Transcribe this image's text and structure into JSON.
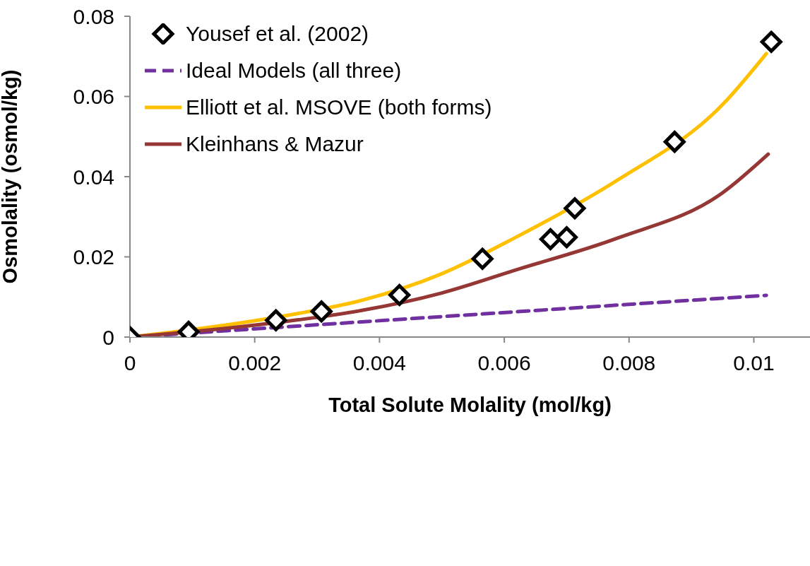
{
  "chart_data": {
    "type": "line",
    "xlabel": "Total Solute Molality (mol/kg)",
    "ylabel": "Osmolality (osmol/kg)",
    "xlim": [
      0,
      0.0109
    ],
    "xticks": [
      0,
      0.002,
      0.004,
      0.006,
      0.008,
      0.01
    ],
    "ylim": [
      0,
      0.08
    ],
    "yticks": [
      0,
      0.02,
      0.04,
      0.06,
      0.08
    ],
    "grid": false,
    "legend": "top left",
    "series": [
      {
        "name": "Yousef et al. (2002)",
        "type": "scatter",
        "marker": "diamond",
        "color": "#000000",
        "x": [
          0,
          0.00094,
          0.00234,
          0.00307,
          0.00432,
          0.00565,
          0.00674,
          0.007,
          0.00713,
          0.00873,
          0.01028
        ],
        "values": [
          0,
          0.0013,
          0.0042,
          0.0064,
          0.0105,
          0.0195,
          0.0244,
          0.0249,
          0.0321,
          0.0487,
          0.0736
        ]
      },
      {
        "name": "Ideal Models (all three)",
        "line_style": "dashed",
        "color": "#7030a0",
        "x": [
          0,
          0.0102
        ],
        "values": [
          0,
          0.0104
        ]
      },
      {
        "name": "Elliott et al. MSOVE (both forms)",
        "line_style": "solid",
        "color": "#ffc000",
        "x": [
          0,
          0.0015,
          0.0027,
          0.0037,
          0.005,
          0.0062,
          0.0078,
          0.0095,
          0.0102
        ],
        "values": [
          0,
          0.0029,
          0.0059,
          0.0091,
          0.0158,
          0.025,
          0.039,
          0.058,
          0.0707
        ]
      },
      {
        "name": "Kleinhans & Mazur",
        "line_style": "solid",
        "color": "#953735",
        "x": [
          0,
          0.0015,
          0.0027,
          0.0037,
          0.005,
          0.0062,
          0.0078,
          0.0095,
          0.01023
        ],
        "values": [
          0,
          0.0021,
          0.0043,
          0.0066,
          0.011,
          0.0168,
          0.0246,
          0.036,
          0.0456
        ]
      }
    ]
  }
}
